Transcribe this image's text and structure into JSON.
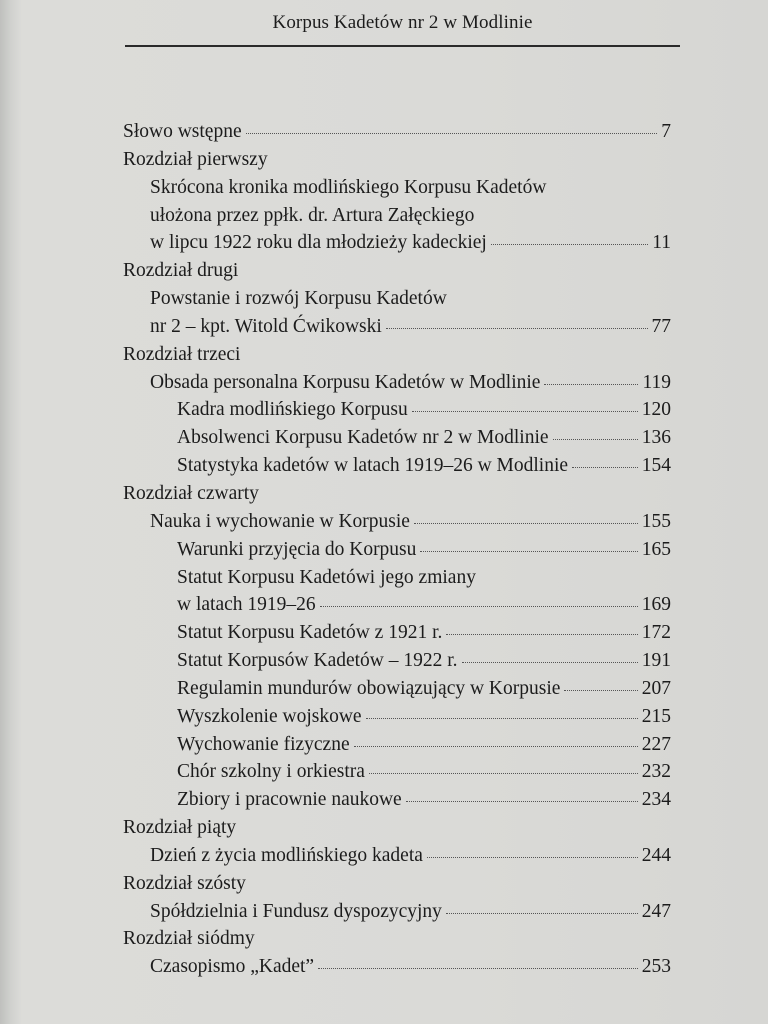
{
  "header": {
    "title": "Korpus Kadetów nr 2 w Modlinie"
  },
  "toc": [
    {
      "level": 0,
      "text": "Słowo wstępne",
      "page": "7"
    },
    {
      "level": 0,
      "text": "Rozdział pierwszy",
      "page": ""
    },
    {
      "level": 1,
      "text": "Skrócona kronika modlińskiego Korpusu Kadetów",
      "page": ""
    },
    {
      "level": 1,
      "text": "ułożona przez ppłk. dr. Artura Załęckiego",
      "page": ""
    },
    {
      "level": 1,
      "text": "w lipcu 1922 roku dla młodzieży kadeckiej",
      "page": "11"
    },
    {
      "level": 0,
      "text": "Rozdział drugi",
      "page": ""
    },
    {
      "level": 1,
      "text": "Powstanie i rozwój Korpusu Kadetów",
      "page": ""
    },
    {
      "level": 1,
      "text": "nr 2 – kpt. Witold Ćwikowski",
      "page": "77"
    },
    {
      "level": 0,
      "text": "Rozdział trzeci",
      "page": ""
    },
    {
      "level": 1,
      "text": "Obsada personalna Korpusu Kadetów w Modlinie",
      "page": "119"
    },
    {
      "level": 2,
      "text": "Kadra modlińskiego Korpusu",
      "page": "120"
    },
    {
      "level": 2,
      "text": "Absolwenci Korpusu Kadetów nr 2 w Modlinie",
      "page": "136"
    },
    {
      "level": 2,
      "text": "Statystyka kadetów w latach 1919–26 w Modlinie",
      "page": "154"
    },
    {
      "level": 0,
      "text": "Rozdział czwarty",
      "page": ""
    },
    {
      "level": 1,
      "text": "Nauka i wychowanie w Korpusie",
      "page": "155"
    },
    {
      "level": 2,
      "text": "Warunki przyjęcia do Korpusu",
      "page": "165"
    },
    {
      "level": 2,
      "text": "Statut Korpusu Kadetówi jego zmiany",
      "page": ""
    },
    {
      "level": 2,
      "text": "w latach 1919–26",
      "page": "169"
    },
    {
      "level": 2,
      "text": "Statut Korpusu Kadetów z 1921 r.",
      "page": "172"
    },
    {
      "level": 2,
      "text": "Statut Korpusów Kadetów – 1922 r.",
      "page": "191"
    },
    {
      "level": 2,
      "text": "Regulamin mundurów obowiązujący w Korpusie",
      "page": "207"
    },
    {
      "level": 2,
      "text": "Wyszkolenie wojskowe",
      "page": "215"
    },
    {
      "level": 2,
      "text": "Wychowanie fizyczne",
      "page": "227"
    },
    {
      "level": 2,
      "text": "Chór szkolny i orkiestra",
      "page": "232"
    },
    {
      "level": 2,
      "text": "Zbiory i pracownie naukowe",
      "page": "234"
    },
    {
      "level": 0,
      "text": "Rozdział piąty",
      "page": ""
    },
    {
      "level": 1,
      "text": "Dzień z życia modlińskiego kadeta",
      "page": "244"
    },
    {
      "level": 0,
      "text": "Rozdział szósty",
      "page": ""
    },
    {
      "level": 1,
      "text": "Spółdzielnia i Fundusz dyspozycyjny",
      "page": "247"
    },
    {
      "level": 0,
      "text": "Rozdział siódmy",
      "page": ""
    },
    {
      "level": 1,
      "text": "Czasopismo „Kadet”",
      "page": "253"
    }
  ]
}
